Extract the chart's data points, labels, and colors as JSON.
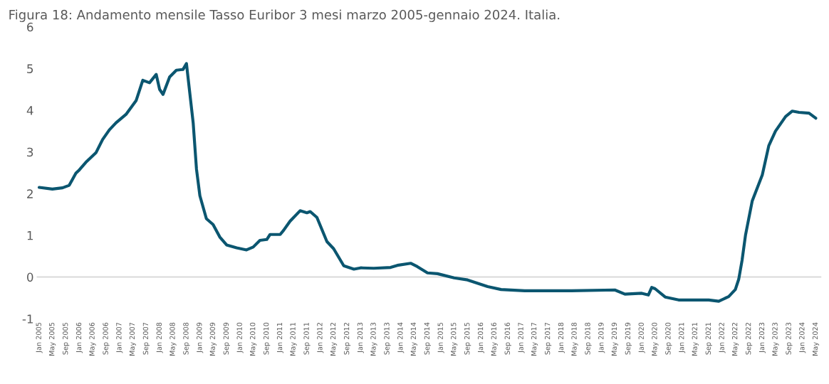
{
  "chart_data": {
    "type": "line",
    "title": "Figura 18: Andamento mensile Tasso Euribor 3 mesi marzo 2005-gennaio 2024. Italia.",
    "x": [
      "2005-01",
      "2005-05",
      "2005-08",
      "2005-10",
      "2005-12",
      "2006-01",
      "2006-03",
      "2006-06",
      "2006-08",
      "2006-10",
      "2006-12",
      "2007-03",
      "2007-06",
      "2007-08",
      "2007-10",
      "2007-12",
      "2008-01",
      "2008-02",
      "2008-04",
      "2008-06",
      "2008-08",
      "2008-09",
      "2008-11",
      "2008-12",
      "2009-01",
      "2009-03",
      "2009-05",
      "2009-07",
      "2009-09",
      "2009-12",
      "2010-03",
      "2010-05",
      "2010-07",
      "2010-09",
      "2010-10",
      "2011-01",
      "2011-02",
      "2011-04",
      "2011-07",
      "2011-09",
      "2011-10",
      "2011-12",
      "2012-03",
      "2012-05",
      "2012-08",
      "2012-11",
      "2013-01",
      "2013-05",
      "2013-10",
      "2013-12",
      "2014-04",
      "2014-06",
      "2014-09",
      "2014-12",
      "2015-05",
      "2015-09",
      "2016-03",
      "2016-07",
      "2017-02",
      "2018-04",
      "2019-05",
      "2019-08",
      "2020-01",
      "2020-03",
      "2020-04",
      "2020-05",
      "2020-08",
      "2020-12",
      "2021-09",
      "2021-12",
      "2022-03",
      "2022-05",
      "2022-06",
      "2022-07",
      "2022-08",
      "2022-10",
      "2023-01",
      "2023-03",
      "2023-05",
      "2023-08",
      "2023-10",
      "2023-12",
      "2024-03",
      "2024-05"
    ],
    "series": [
      {
        "color": "#0b5670",
        "values": [
          2.15,
          2.11,
          2.14,
          2.2,
          2.49,
          2.57,
          2.75,
          2.98,
          3.3,
          3.53,
          3.7,
          3.9,
          4.23,
          4.72,
          4.66,
          4.86,
          4.5,
          4.38,
          4.8,
          4.96,
          4.98,
          5.12,
          3.7,
          2.59,
          1.95,
          1.4,
          1.26,
          0.96,
          0.77,
          0.7,
          0.65,
          0.72,
          0.88,
          0.9,
          1.02,
          1.02,
          1.12,
          1.34,
          1.59,
          1.54,
          1.57,
          1.43,
          0.85,
          0.68,
          0.27,
          0.19,
          0.22,
          0.21,
          0.23,
          0.28,
          0.33,
          0.25,
          0.1,
          0.08,
          -0.02,
          -0.07,
          -0.23,
          -0.3,
          -0.33,
          -0.33,
          -0.31,
          -0.41,
          -0.39,
          -0.43,
          -0.25,
          -0.28,
          -0.48,
          -0.55,
          -0.55,
          -0.58,
          -0.47,
          -0.3,
          -0.05,
          0.4,
          1.0,
          1.82,
          2.45,
          3.15,
          3.5,
          3.85,
          3.98,
          3.95,
          3.93,
          3.81
        ]
      }
    ],
    "xlim": [
      "2004-12-15",
      "2024-06-15"
    ],
    "xticks": [
      {
        "value": "2005-01",
        "label": "Jan 2005"
      },
      {
        "value": "2005-05",
        "label": "May 2005"
      },
      {
        "value": "2005-09",
        "label": "Sep 2005"
      },
      {
        "value": "2006-01",
        "label": "Jan 2006"
      },
      {
        "value": "2006-05",
        "label": "May 2006"
      },
      {
        "value": "2006-09",
        "label": "Sep 2006"
      },
      {
        "value": "2007-01",
        "label": "Jan 2007"
      },
      {
        "value": "2007-05",
        "label": "May 2007"
      },
      {
        "value": "2007-09",
        "label": "Sep 2007"
      },
      {
        "value": "2008-01",
        "label": "Jan 2008"
      },
      {
        "value": "2008-05",
        "label": "May 2008"
      },
      {
        "value": "2008-09",
        "label": "Sep 2008"
      },
      {
        "value": "2009-01",
        "label": "Jan 2009"
      },
      {
        "value": "2009-05",
        "label": "May 2009"
      },
      {
        "value": "2009-09",
        "label": "Sep 2009"
      },
      {
        "value": "2010-01",
        "label": "Jan 2010"
      },
      {
        "value": "2010-05",
        "label": "May 2010"
      },
      {
        "value": "2010-09",
        "label": "Sep 2010"
      },
      {
        "value": "2011-01",
        "label": "Jan 2011"
      },
      {
        "value": "2011-05",
        "label": "May 2011"
      },
      {
        "value": "2011-09",
        "label": "Sep 2011"
      },
      {
        "value": "2012-01",
        "label": "Jan 2012"
      },
      {
        "value": "2012-05",
        "label": "May 2012"
      },
      {
        "value": "2012-09",
        "label": "Sep 2012"
      },
      {
        "value": "2013-01",
        "label": "Jan 2013"
      },
      {
        "value": "2013-05",
        "label": "May 2013"
      },
      {
        "value": "2013-09",
        "label": "Sep 2013"
      },
      {
        "value": "2014-01",
        "label": "Jan 2014"
      },
      {
        "value": "2014-05",
        "label": "May 2014"
      },
      {
        "value": "2014-09",
        "label": "Sep 2014"
      },
      {
        "value": "2015-01",
        "label": "Jan 2015"
      },
      {
        "value": "2015-05",
        "label": "May 2015"
      },
      {
        "value": "2015-09",
        "label": "Sep 2015"
      },
      {
        "value": "2016-01",
        "label": "Jan 2016"
      },
      {
        "value": "2016-05",
        "label": "May 2016"
      },
      {
        "value": "2016-09",
        "label": "Sep 2016"
      },
      {
        "value": "2017-01",
        "label": "Jan 2017"
      },
      {
        "value": "2017-05",
        "label": "May 2017"
      },
      {
        "value": "2017-09",
        "label": "Sep 2017"
      },
      {
        "value": "2018-01",
        "label": "Jan 2018"
      },
      {
        "value": "2018-05",
        "label": "May 2018"
      },
      {
        "value": "2018-09",
        "label": "Sep 2018"
      },
      {
        "value": "2019-01",
        "label": "Jan 2019"
      },
      {
        "value": "2019-05",
        "label": "May 2019"
      },
      {
        "value": "2019-09",
        "label": "Sep 2019"
      },
      {
        "value": "2020-01",
        "label": "Jan 2020"
      },
      {
        "value": "2020-05",
        "label": "May 2020"
      },
      {
        "value": "2020-09",
        "label": "Sep 2020"
      },
      {
        "value": "2021-01",
        "label": "Jan 2021"
      },
      {
        "value": "2021-05",
        "label": "May 2021"
      },
      {
        "value": "2021-09",
        "label": "Sep 2021"
      },
      {
        "value": "2022-01",
        "label": "Jan 2022"
      },
      {
        "value": "2022-05",
        "label": "May 2022"
      },
      {
        "value": "2022-09",
        "label": "Sep 2022"
      },
      {
        "value": "2023-01",
        "label": "Jan 2023"
      },
      {
        "value": "2023-05",
        "label": "May 2023"
      },
      {
        "value": "2023-09",
        "label": "Sep 2023"
      },
      {
        "value": "2024-01",
        "label": "Jan 2024"
      },
      {
        "value": "2024-05",
        "label": "May 2024"
      }
    ],
    "ylim": [
      -1,
      6
    ],
    "yticks": [
      -1,
      0,
      1,
      2,
      3,
      4,
      5,
      6
    ],
    "ref_lines": [
      {
        "axis": "y",
        "value": 0,
        "color": "#d9d9d9"
      }
    ],
    "line_style": "solid",
    "marker": "none",
    "grid": false,
    "legend": false
  }
}
